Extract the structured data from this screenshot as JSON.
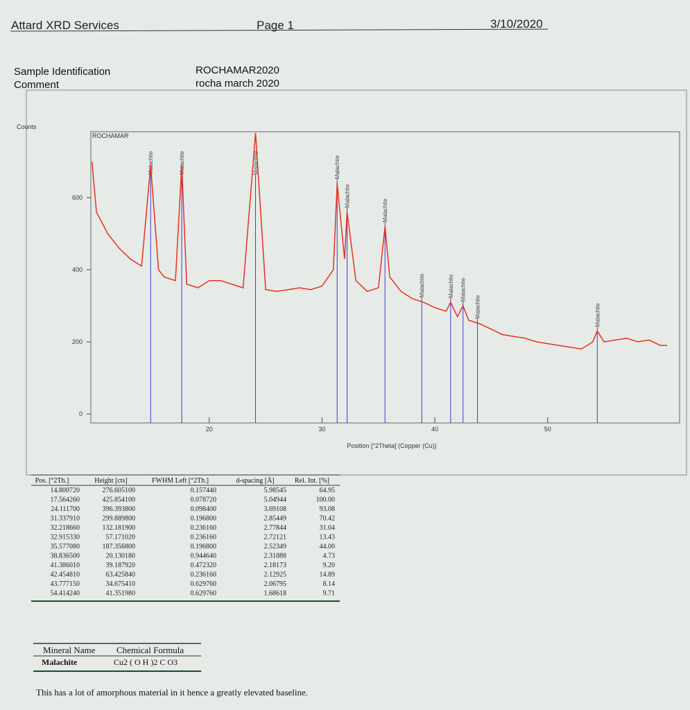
{
  "header": {
    "company": "Attard XRD Services",
    "page": "Page 1",
    "date": "3/10/2020"
  },
  "sample": {
    "id_label": "Sample Identification",
    "id": "ROCHAMAR2020",
    "comment_label": "Comment",
    "comment": "rocha march 2020"
  },
  "chart_data": {
    "type": "line",
    "y_label": "Counts",
    "x_label": "Position [°2Theta] (Copper (Cu))",
    "x": [
      9.6,
      10,
      11,
      12,
      13,
      14,
      14.8,
      15.5,
      16,
      17,
      17.56,
      18,
      19,
      20,
      21,
      22,
      23,
      24.1,
      25,
      26,
      27,
      28,
      29,
      30,
      31,
      31.34,
      32,
      32.22,
      33,
      34,
      35,
      35.58,
      36,
      37,
      38,
      39,
      40,
      41,
      41.4,
      42,
      42.5,
      43,
      44,
      45,
      46,
      47,
      48,
      49,
      50,
      51,
      52,
      53,
      54,
      54.4,
      55,
      56,
      57,
      58,
      59,
      60,
      60.6
    ],
    "series": [
      {
        "name": "ROCHAMAR",
        "color": "#e8301c",
        "values": [
          700,
          560,
          500,
          460,
          430,
          410,
          690,
          400,
          380,
          370,
          690,
          360,
          350,
          370,
          370,
          360,
          350,
          780,
          345,
          340,
          345,
          350,
          345,
          355,
          400,
          640,
          430,
          560,
          370,
          340,
          350,
          520,
          380,
          340,
          320,
          310,
          295,
          285,
          310,
          270,
          300,
          260,
          250,
          235,
          220,
          215,
          210,
          200,
          195,
          190,
          185,
          180,
          200,
          230,
          200,
          205,
          210,
          200,
          205,
          190,
          190
        ]
      }
    ],
    "annotations": [
      {
        "x": 14.8,
        "label": "Malachite"
      },
      {
        "x": 17.56,
        "label": "Malachite"
      },
      {
        "x": 24.1,
        "label": "Malachite"
      },
      {
        "x": 31.34,
        "label": "Malachite"
      },
      {
        "x": 32.22,
        "label": "Malachite"
      },
      {
        "x": 35.58,
        "label": "Malachite"
      },
      {
        "x": 38.84,
        "label": "Malachite"
      },
      {
        "x": 41.4,
        "label": "Malachite"
      },
      {
        "x": 42.5,
        "label": "Malachite"
      },
      {
        "x": 43.78,
        "label": "Malachite"
      },
      {
        "x": 54.4,
        "label": "Malachite"
      }
    ],
    "annotation_color": "#3a3ad0",
    "xlim": [
      9.5,
      61.7
    ],
    "ylim": [
      0,
      783
    ],
    "xticks": [
      20,
      30,
      40,
      50
    ],
    "yticks": [
      0,
      200,
      400,
      600
    ]
  },
  "peak_table": {
    "columns": [
      "Pos. [°2Th.]",
      "Height [cts]",
      "FWHM Left [°2Th.]",
      "d-spacing [Å]",
      "Rel. Int. [%]"
    ],
    "rows": [
      [
        "14.800720",
        "276.605100",
        "0.157440",
        "5.98545",
        "64.95"
      ],
      [
        "17.564260",
        "425.854100",
        "0.078720",
        "5.04944",
        "100.00"
      ],
      [
        "24.111700",
        "396.393800",
        "0.098400",
        "3.69108",
        "93.08"
      ],
      [
        "31.337910",
        "299.889800",
        "0.196800",
        "2.85449",
        "70.42"
      ],
      [
        "32.218660",
        "132.181900",
        "0.236160",
        "2.77844",
        "31.04"
      ],
      [
        "32.915330",
        "57.171020",
        "0.236160",
        "2.72121",
        "13.43"
      ],
      [
        "35.577080",
        "187.356800",
        "0.196800",
        "2.52349",
        "44.00"
      ],
      [
        "38.836500",
        "20.130180",
        "0.944640",
        "2.31888",
        "4.73"
      ],
      [
        "41.386010",
        "39.187920",
        "0.472320",
        "2.18173",
        "9.20"
      ],
      [
        "42.454810",
        "63.425840",
        "0.236160",
        "2.12925",
        "14.89"
      ],
      [
        "43.777150",
        "34.675410",
        "0.629760",
        "2.06795",
        "8.14"
      ],
      [
        "54.414240",
        "41.351980",
        "0.629760",
        "1.68618",
        "9.71"
      ]
    ]
  },
  "mineral_table": {
    "columns": [
      "Mineral Name",
      "Chemical Formula"
    ],
    "rows": [
      [
        "Malachite",
        "Cu2 ( O H )2 C O3"
      ]
    ]
  },
  "note": "This has a lot of amorphous material in it hence a greatly elevated baseline."
}
